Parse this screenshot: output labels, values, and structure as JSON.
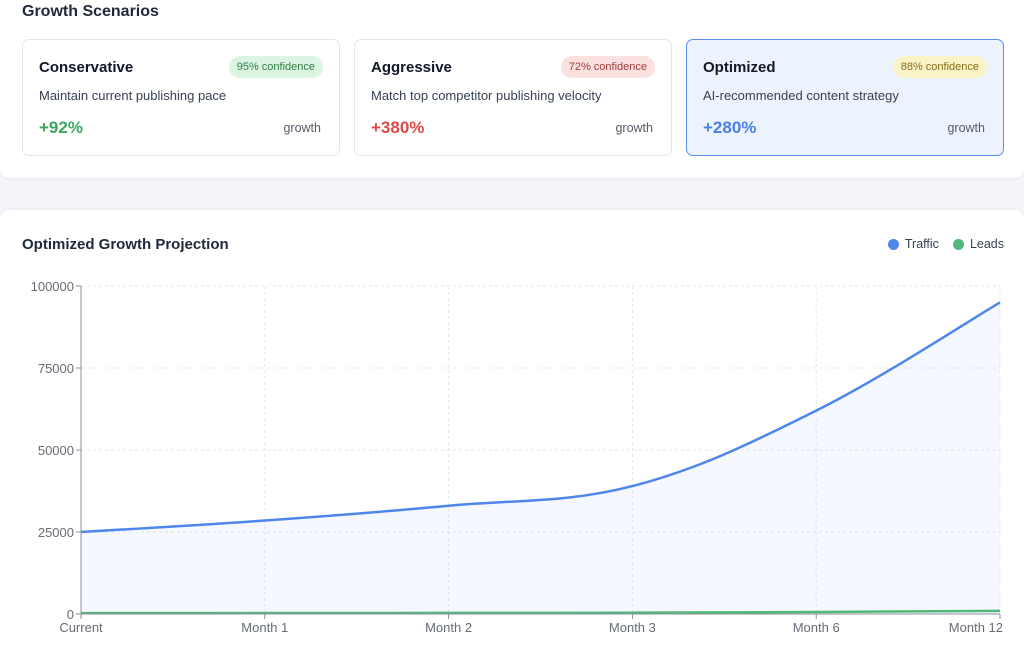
{
  "scenarios_section": {
    "title": "Growth Scenarios",
    "cards": [
      {
        "title": "Conservative",
        "badge": "95% confidence",
        "description": "Maintain current publishing pace",
        "value": "+92%",
        "unit": "growth",
        "value_color": "#3aa65f"
      },
      {
        "title": "Aggressive",
        "badge": "72% confidence",
        "description": "Match top competitor publishing velocity",
        "value": "+380%",
        "unit": "growth",
        "value_color": "#e04848"
      },
      {
        "title": "Optimized",
        "badge": "88% confidence",
        "description": "AI-recommended content strategy",
        "value": "+280%",
        "unit": "growth",
        "value_color": "#4a7fe6"
      }
    ]
  },
  "chart_section": {
    "title": "Optimized Growth Projection",
    "legend": [
      {
        "label": "Traffic",
        "color": "#4f86ec"
      },
      {
        "label": "Leads",
        "color": "#52b97a"
      }
    ]
  },
  "chart_data": {
    "type": "area",
    "title": "Optimized Growth Projection",
    "categories": [
      "Current",
      "Month 1",
      "Month 2",
      "Month 3",
      "Month 6",
      "Month 12"
    ],
    "ylim": [
      0,
      100000
    ],
    "yticks": [
      0,
      25000,
      50000,
      75000,
      100000
    ],
    "grid": true,
    "legend_position": "top-right",
    "series": [
      {
        "name": "Traffic",
        "color": "#4f86ec",
        "values": [
          25000,
          28500,
          33000,
          39000,
          62000,
          95000
        ]
      },
      {
        "name": "Leads",
        "color": "#52b97a",
        "values": [
          250,
          290,
          340,
          400,
          620,
          950
        ]
      }
    ]
  }
}
